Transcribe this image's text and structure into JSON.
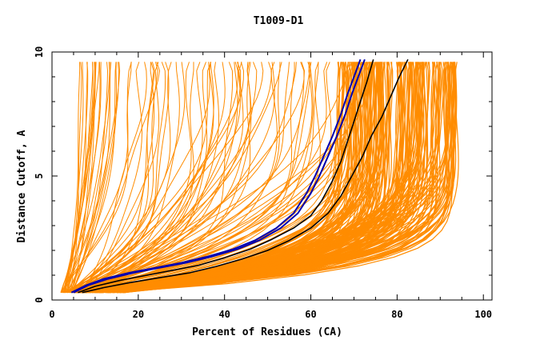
{
  "chart_data": {
    "type": "line",
    "title": "T1009-D1",
    "xlabel": "Percent of Residues (CA)",
    "ylabel": "Distance Cutoff, A",
    "xlim": [
      0,
      102
    ],
    "ylim": [
      0,
      10
    ],
    "x_ticks": [
      "0",
      "20",
      "40",
      "60",
      "80",
      "100"
    ],
    "y_ticks": [
      "0",
      "5",
      "10"
    ],
    "grid": false,
    "colors": {
      "bundle": "#ff8c00",
      "highlight_blue": "#0000b0",
      "highlight_black": "#000000"
    },
    "highlighted_series": [
      {
        "color": "blue",
        "points": [
          [
            4.5,
            0.3
          ],
          [
            8,
            0.6
          ],
          [
            12,
            0.85
          ],
          [
            18,
            1.1
          ],
          [
            24,
            1.3
          ],
          [
            30,
            1.5
          ],
          [
            36,
            1.75
          ],
          [
            42,
            2.05
          ],
          [
            47,
            2.4
          ],
          [
            52,
            2.9
          ],
          [
            56,
            3.5
          ],
          [
            59,
            4.3
          ],
          [
            61,
            5.0
          ],
          [
            63,
            5.8
          ],
          [
            65,
            6.6
          ],
          [
            67,
            7.5
          ],
          [
            68.5,
            8.3
          ],
          [
            70,
            9.0
          ],
          [
            71.5,
            9.7
          ]
        ]
      },
      {
        "color": "blue",
        "points": [
          [
            5,
            0.3
          ],
          [
            8.5,
            0.6
          ],
          [
            13,
            0.85
          ],
          [
            19,
            1.1
          ],
          [
            25,
            1.3
          ],
          [
            31,
            1.5
          ],
          [
            37,
            1.75
          ],
          [
            43,
            2.05
          ],
          [
            48,
            2.4
          ],
          [
            53,
            2.9
          ],
          [
            57,
            3.5
          ],
          [
            60,
            4.3
          ],
          [
            62,
            5.0
          ],
          [
            64,
            5.8
          ],
          [
            66,
            6.6
          ],
          [
            68,
            7.5
          ],
          [
            69.5,
            8.3
          ],
          [
            71,
            9.0
          ],
          [
            72.5,
            9.7
          ]
        ]
      },
      {
        "color": "black",
        "points": [
          [
            6,
            0.3
          ],
          [
            10,
            0.55
          ],
          [
            16,
            0.8
          ],
          [
            22,
            1.0
          ],
          [
            28,
            1.2
          ],
          [
            34,
            1.4
          ],
          [
            40,
            1.7
          ],
          [
            46,
            2.05
          ],
          [
            51,
            2.45
          ],
          [
            56,
            2.9
          ],
          [
            60,
            3.4
          ],
          [
            62.5,
            4.0
          ],
          [
            65,
            4.8
          ],
          [
            67,
            5.6
          ],
          [
            68.5,
            6.4
          ],
          [
            70,
            7.2
          ],
          [
            71.5,
            8.0
          ],
          [
            73,
            8.8
          ],
          [
            74.5,
            9.7
          ]
        ]
      },
      {
        "color": "black",
        "points": [
          [
            7,
            0.3
          ],
          [
            12,
            0.5
          ],
          [
            18,
            0.7
          ],
          [
            25,
            0.9
          ],
          [
            32,
            1.1
          ],
          [
            38,
            1.35
          ],
          [
            44,
            1.65
          ],
          [
            50,
            2.0
          ],
          [
            55,
            2.4
          ],
          [
            60,
            2.9
          ],
          [
            64,
            3.5
          ],
          [
            67,
            4.2
          ],
          [
            69.5,
            5.0
          ],
          [
            72,
            5.8
          ],
          [
            74,
            6.6
          ],
          [
            76.5,
            7.4
          ],
          [
            78.5,
            8.2
          ],
          [
            80.5,
            9.0
          ],
          [
            82.5,
            9.7
          ]
        ]
      }
    ]
  }
}
